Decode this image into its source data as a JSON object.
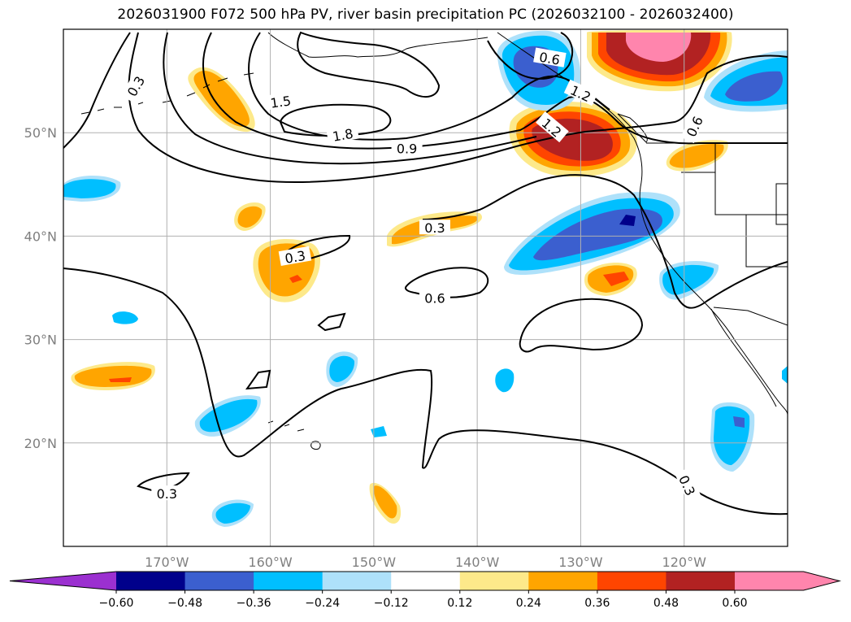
{
  "title": "2026031900 F072 500 hPa PV, river basin precipitation PC (2026032100 - 2026032400)",
  "map": {
    "lon_min": -180,
    "lon_max": -110,
    "lat_min": 10,
    "lat_max": 60,
    "lat_ticks": [
      {
        "value": 50,
        "label": "50°N"
      },
      {
        "value": 40,
        "label": "40°N"
      },
      {
        "value": 30,
        "label": "30°N"
      },
      {
        "value": 20,
        "label": "20°N"
      }
    ],
    "lon_ticks": [
      {
        "value": -170,
        "label": "170°W"
      },
      {
        "value": -160,
        "label": "160°W"
      },
      {
        "value": -150,
        "label": "150°W"
      },
      {
        "value": -140,
        "label": "140°W"
      },
      {
        "value": -130,
        "label": "130°W"
      },
      {
        "value": -120,
        "label": "120°W"
      }
    ],
    "contour_labels": [
      {
        "text": "0.3",
        "lon": -173,
        "lat": 54.5,
        "rotation": -60
      },
      {
        "text": "1.5",
        "lon": -159,
        "lat": 53,
        "rotation": -8
      },
      {
        "text": "1.8",
        "lon": -153,
        "lat": 49.8,
        "rotation": -10
      },
      {
        "text": "0.9",
        "lon": -146.8,
        "lat": 48.5,
        "rotation": 0
      },
      {
        "text": "0.6",
        "lon": -133,
        "lat": 57.2,
        "rotation": 10
      },
      {
        "text": "1.2",
        "lon": -130,
        "lat": 53.8,
        "rotation": 25
      },
      {
        "text": "1.2",
        "lon": -132.8,
        "lat": 50.5,
        "rotation": 40
      },
      {
        "text": "0.6",
        "lon": -119,
        "lat": 50.6,
        "rotation": -65
      },
      {
        "text": "0.3",
        "lon": -144.1,
        "lat": 40.8,
        "rotation": 0
      },
      {
        "text": "0.3",
        "lon": -157.6,
        "lat": 38,
        "rotation": -10
      },
      {
        "text": "0.6",
        "lon": -144.1,
        "lat": 34,
        "rotation": 0
      },
      {
        "text": "0.3",
        "lon": -170,
        "lat": 15.1,
        "rotation": 0
      },
      {
        "text": "0.3",
        "lon": -119.7,
        "lat": 15.9,
        "rotation": 65
      }
    ]
  },
  "colorbar": {
    "ticks": [
      "−0.60",
      "−0.48",
      "−0.36",
      "−0.24",
      "−0.12",
      "0.12",
      "0.24",
      "0.36",
      "0.48",
      "0.60"
    ],
    "colors": [
      "#9b30d0",
      "#00008b",
      "#3b5fcf",
      "#00bfff",
      "#aee1fa",
      "#ffffff",
      "#fde98a",
      "#ffa500",
      "#ff4500",
      "#b22222",
      "#ff85ad"
    ]
  }
}
